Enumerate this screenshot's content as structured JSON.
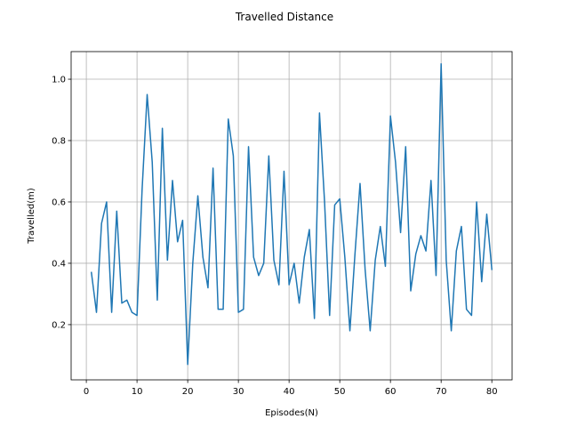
{
  "chart_data": {
    "type": "line",
    "title": "Travelled Distance",
    "xlabel": "Episodes(N)",
    "ylabel": "Travelled(m)",
    "xlim": [
      -3,
      84
    ],
    "ylim": [
      0.02,
      1.09
    ],
    "xticks": [
      0,
      10,
      20,
      30,
      40,
      50,
      60,
      70,
      80
    ],
    "yticks": [
      0.2,
      0.4,
      0.6,
      0.8,
      1.0
    ],
    "xtick_labels": [
      "0",
      "10",
      "20",
      "30",
      "40",
      "50",
      "60",
      "70",
      "80"
    ],
    "ytick_labels": [
      "0.2",
      "0.4",
      "0.6",
      "0.8",
      "1.0"
    ],
    "grid": true,
    "series": [
      {
        "color": "#1f77b4",
        "x": [
          1,
          2,
          3,
          4,
          5,
          6,
          7,
          8,
          9,
          10,
          11,
          12,
          13,
          14,
          15,
          16,
          17,
          18,
          19,
          20,
          21,
          22,
          23,
          24,
          25,
          26,
          27,
          28,
          29,
          30,
          31,
          32,
          33,
          34,
          35,
          36,
          37,
          38,
          39,
          40,
          41,
          42,
          43,
          44,
          45,
          46,
          47,
          48,
          49,
          50,
          51,
          52,
          53,
          54,
          55,
          56,
          57,
          58,
          59,
          60,
          61,
          62,
          63,
          64,
          65,
          66,
          67,
          68,
          69,
          70,
          71,
          72,
          73,
          74,
          75,
          76,
          77,
          78,
          79,
          80
        ],
        "y": [
          0.37,
          0.24,
          0.53,
          0.6,
          0.24,
          0.57,
          0.27,
          0.28,
          0.24,
          0.23,
          0.64,
          0.95,
          0.73,
          0.28,
          0.84,
          0.41,
          0.67,
          0.47,
          0.54,
          0.07,
          0.4,
          0.62,
          0.42,
          0.32,
          0.71,
          0.25,
          0.25,
          0.87,
          0.75,
          0.24,
          0.25,
          0.78,
          0.42,
          0.36,
          0.4,
          0.75,
          0.41,
          0.33,
          0.7,
          0.33,
          0.4,
          0.27,
          0.42,
          0.51,
          0.22,
          0.89,
          0.6,
          0.23,
          0.59,
          0.61,
          0.42,
          0.18,
          0.43,
          0.66,
          0.38,
          0.18,
          0.41,
          0.52,
          0.39,
          0.88,
          0.73,
          0.5,
          0.78,
          0.31,
          0.43,
          0.49,
          0.44,
          0.67,
          0.36,
          1.05,
          0.41,
          0.18,
          0.44,
          0.52,
          0.25,
          0.23,
          0.6,
          0.34,
          0.56,
          0.38
        ]
      }
    ]
  }
}
